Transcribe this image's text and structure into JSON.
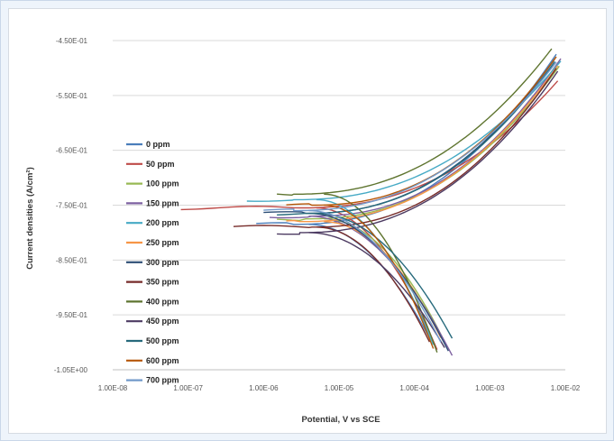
{
  "chart_data": {
    "type": "line",
    "title": "",
    "xlabel": "Potential, V vs SCE",
    "ylabel": "Current densities (A/cm²)",
    "x_scale": "log",
    "xlim": [
      1e-08,
      0.01
    ],
    "ylim": [
      -1.05,
      -0.45
    ],
    "x_tick_labels": [
      "1.00E-08",
      "1.00E-07",
      "1.00E-06",
      "1.00E-05",
      "1.00E-04",
      "1.00E-03",
      "1.00E-02"
    ],
    "y_tick_labels": [
      "-4.50E-01",
      "-5.50E-01",
      "-6.50E-01",
      "-7.50E-01",
      "-8.50E-01",
      "-9.50E-01",
      "-1.05E+00"
    ],
    "grid": "horizontal",
    "legend_position": "left-inside",
    "series": [
      {
        "name": "0 ppm",
        "color": "#4a7ebb",
        "ecorr": -0.785,
        "x_start": 8e-07,
        "x_end": 0.008,
        "y_end": -0.47
      },
      {
        "name": "50 ppm",
        "color": "#be4b48",
        "ecorr": -0.755,
        "x_start": 8e-08,
        "x_end": 0.009,
        "y_end": -0.515
      },
      {
        "name": "100 ppm",
        "color": "#98b954",
        "ecorr": -0.775,
        "x_start": 1.5e-06,
        "x_end": 0.009,
        "y_end": -0.49
      },
      {
        "name": "150 ppm",
        "color": "#7d60a0",
        "ecorr": -0.77,
        "x_start": 1.2e-06,
        "x_end": 0.009,
        "y_end": -0.48
      },
      {
        "name": "200 ppm",
        "color": "#46aac5",
        "ecorr": -0.74,
        "x_start": 6e-07,
        "x_end": 0.009,
        "y_end": -0.485
      },
      {
        "name": "250 ppm",
        "color": "#f79646",
        "ecorr": -0.78,
        "x_start": 2e-06,
        "x_end": 0.0085,
        "y_end": -0.49
      },
      {
        "name": "300 ppm",
        "color": "#2c4d75",
        "ecorr": -0.765,
        "x_start": 1e-06,
        "x_end": 0.008,
        "y_end": -0.475
      },
      {
        "name": "350 ppm",
        "color": "#772c2a",
        "ecorr": -0.79,
        "x_start": 4e-07,
        "x_end": 0.0085,
        "y_end": -0.49
      },
      {
        "name": "400 ppm",
        "color": "#5f7530",
        "ecorr": -0.73,
        "x_start": 1.5e-06,
        "x_end": 0.0075,
        "y_end": -0.455
      },
      {
        "name": "450 ppm",
        "color": "#4d3b62",
        "ecorr": -0.8,
        "x_start": 1.5e-06,
        "x_end": 0.0085,
        "y_end": -0.5
      },
      {
        "name": "500 ppm",
        "color": "#276a7c",
        "ecorr": -0.765,
        "x_start": 1.5e-06,
        "x_end": 0.008,
        "y_end": -0.48
      },
      {
        "name": "600 ppm",
        "color": "#b65708",
        "ecorr": -0.75,
        "x_start": 2e-06,
        "x_end": 0.008,
        "y_end": -0.475
      },
      {
        "name": "700 ppm",
        "color": "#729aca",
        "ecorr": -0.76,
        "x_start": 1e-06,
        "x_end": 0.008,
        "y_end": -0.485
      }
    ]
  }
}
